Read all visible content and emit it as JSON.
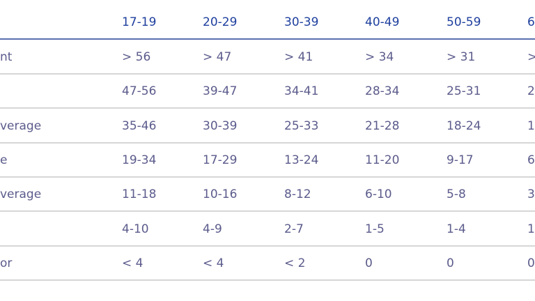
{
  "header": [
    "",
    "17-19",
    "20-29",
    "30-39",
    "40-49",
    "50-59",
    "6"
  ],
  "rows": [
    [
      "nt",
      "> 56",
      "> 47",
      "> 41",
      "> 34",
      "> 31",
      ">"
    ],
    [
      "",
      "47-56",
      "39-47",
      "34-41",
      "28-34",
      "25-31",
      "2"
    ],
    [
      "verage",
      "35-46",
      "30-39",
      "25-33",
      "21-28",
      "18-24",
      "1"
    ],
    [
      "e",
      "19-34",
      "17-29",
      "13-24",
      "11-20",
      "9-17",
      "6"
    ],
    [
      "verage",
      "11-18",
      "10-16",
      "8-12",
      "6-10",
      "5-8",
      "3"
    ],
    [
      "",
      "4-10",
      "4-9",
      "2-7",
      "1-5",
      "1-4",
      "1"
    ],
    [
      "or",
      "< 4",
      "< 4",
      "< 2",
      "0",
      "0",
      "0"
    ]
  ],
  "colors": {
    "header_text": "#1e3f9e",
    "body_text": "#5b5b8c",
    "header_rule": "#5a6fae",
    "row_rule": "#d6d6d6"
  }
}
